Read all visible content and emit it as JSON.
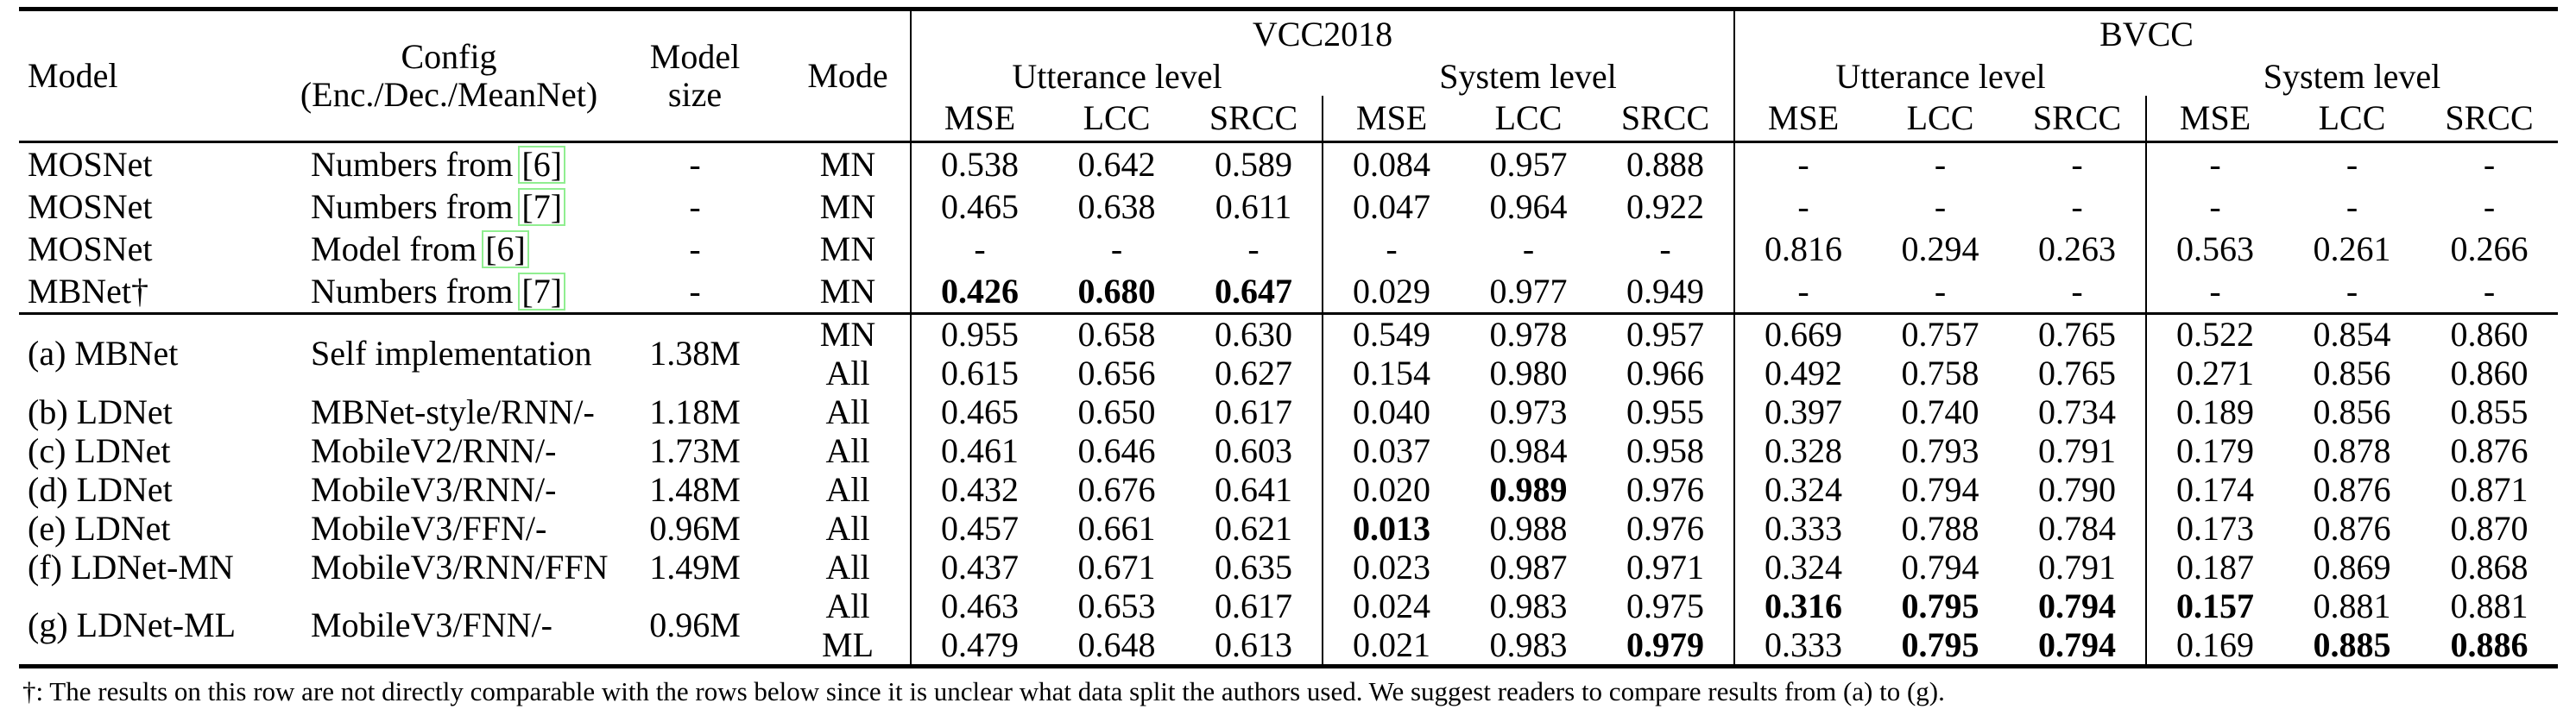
{
  "colors": {
    "text": "#000000",
    "rule": "#000000",
    "background": "#ffffff",
    "citation_box_border": "#90ee90"
  },
  "header": {
    "model": "Model",
    "config_line1": "Config",
    "config_line2": "(Enc./Dec./MeanNet)",
    "size_line1": "Model",
    "size_line2": "size",
    "mode": "Mode",
    "dataset1": "VCC2018",
    "dataset2": "BVCC",
    "utterance": "Utterance level",
    "system": "System level",
    "metrics": [
      "MSE",
      "LCC",
      "SRCC"
    ]
  },
  "groups": [
    {
      "rows": [
        {
          "model": "MOSNet",
          "config": "Numbers from",
          "cite": "[6]",
          "size": "-",
          "mode": "MN",
          "values": [
            "0.538",
            "0.642",
            "0.589",
            "0.084",
            "0.957",
            "0.888",
            "-",
            "-",
            "-",
            "-",
            "-",
            "-"
          ],
          "bold": []
        },
        {
          "model": "MOSNet",
          "config": "Numbers from",
          "cite": "[7]",
          "size": "-",
          "mode": "MN",
          "values": [
            "0.465",
            "0.638",
            "0.611",
            "0.047",
            "0.964",
            "0.922",
            "-",
            "-",
            "-",
            "-",
            "-",
            "-"
          ],
          "bold": []
        },
        {
          "model": "MOSNet",
          "config": "Model from",
          "cite": "[6]",
          "size": "-",
          "mode": "MN",
          "values": [
            "-",
            "-",
            "-",
            "-",
            "-",
            "-",
            "0.816",
            "0.294",
            "0.263",
            "0.563",
            "0.261",
            "0.266"
          ],
          "bold": []
        },
        {
          "model": "MBNet†",
          "config": "Numbers from",
          "cite": "[7]",
          "size": "-",
          "mode": "MN",
          "values": [
            "0.426",
            "0.680",
            "0.647",
            "0.029",
            "0.977",
            "0.949",
            "-",
            "-",
            "-",
            "-",
            "-",
            "-"
          ],
          "bold": [
            0,
            1,
            2
          ]
        }
      ]
    },
    {
      "rows": [
        {
          "model": "(a) MBNet",
          "rowspan": 2,
          "config": "Self implementation",
          "cite": null,
          "size": "1.38M",
          "mode": "MN",
          "values": [
            "0.955",
            "0.658",
            "0.630",
            "0.549",
            "0.978",
            "0.957",
            "0.669",
            "0.757",
            "0.765",
            "0.522",
            "0.854",
            "0.860"
          ],
          "bold": []
        },
        {
          "covered": true,
          "mode": "All",
          "values": [
            "0.615",
            "0.656",
            "0.627",
            "0.154",
            "0.980",
            "0.966",
            "0.492",
            "0.758",
            "0.765",
            "0.271",
            "0.856",
            "0.860"
          ],
          "bold": []
        },
        {
          "model": "(b) LDNet",
          "config": "MBNet-style/RNN/-",
          "cite": null,
          "size": "1.18M",
          "mode": "All",
          "values": [
            "0.465",
            "0.650",
            "0.617",
            "0.040",
            "0.973",
            "0.955",
            "0.397",
            "0.740",
            "0.734",
            "0.189",
            "0.856",
            "0.855"
          ],
          "bold": []
        },
        {
          "model": "(c) LDNet",
          "config": "MobileV2/RNN/-",
          "cite": null,
          "size": "1.73M",
          "mode": "All",
          "values": [
            "0.461",
            "0.646",
            "0.603",
            "0.037",
            "0.984",
            "0.958",
            "0.328",
            "0.793",
            "0.791",
            "0.179",
            "0.878",
            "0.876"
          ],
          "bold": []
        },
        {
          "model": "(d) LDNet",
          "config": "MobileV3/RNN/-",
          "cite": null,
          "size": "1.48M",
          "mode": "All",
          "values": [
            "0.432",
            "0.676",
            "0.641",
            "0.020",
            "0.989",
            "0.976",
            "0.324",
            "0.794",
            "0.790",
            "0.174",
            "0.876",
            "0.871"
          ],
          "bold": [
            4
          ]
        },
        {
          "model": "(e) LDNet",
          "config": "MobileV3/FFN/-",
          "cite": null,
          "size": "0.96M",
          "mode": "All",
          "values": [
            "0.457",
            "0.661",
            "0.621",
            "0.013",
            "0.988",
            "0.976",
            "0.333",
            "0.788",
            "0.784",
            "0.173",
            "0.876",
            "0.870"
          ],
          "bold": [
            3
          ]
        },
        {
          "model": "(f) LDNet-MN",
          "config": "MobileV3/RNN/FFN",
          "cite": null,
          "size": "1.49M",
          "mode": "All",
          "values": [
            "0.437",
            "0.671",
            "0.635",
            "0.023",
            "0.987",
            "0.971",
            "0.324",
            "0.794",
            "0.791",
            "0.187",
            "0.869",
            "0.868"
          ],
          "bold": []
        },
        {
          "model": "(g) LDNet-ML",
          "rowspan": 2,
          "config": "MobileV3/FNN/-",
          "cite": null,
          "size": "0.96M",
          "mode": "All",
          "values": [
            "0.463",
            "0.653",
            "0.617",
            "0.024",
            "0.983",
            "0.975",
            "0.316",
            "0.795",
            "0.794",
            "0.157",
            "0.881",
            "0.881"
          ],
          "bold": [
            6,
            7,
            8,
            9
          ]
        },
        {
          "covered": true,
          "mode": "ML",
          "values": [
            "0.479",
            "0.648",
            "0.613",
            "0.021",
            "0.983",
            "0.979",
            "0.333",
            "0.795",
            "0.794",
            "0.169",
            "0.885",
            "0.886"
          ],
          "bold": [
            5,
            7,
            8,
            10,
            11
          ]
        }
      ]
    }
  ],
  "footnote": "†: The results on this row are not directly comparable with the rows below since it is unclear what data split the authors used. We suggest readers to compare results from (a) to (g)."
}
